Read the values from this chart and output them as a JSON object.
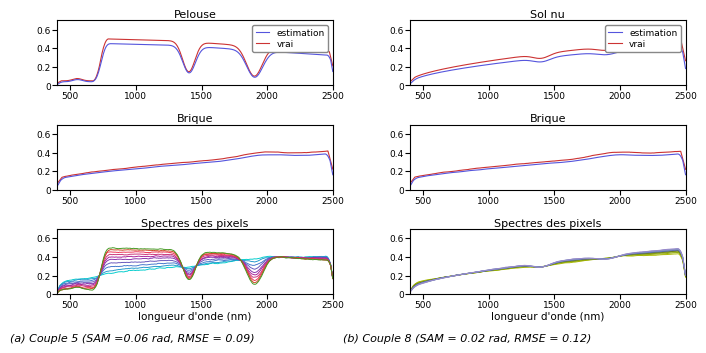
{
  "x_ticks": [
    500,
    1000,
    1500,
    2000,
    2500
  ],
  "y_ticks": [
    0,
    0.2,
    0.4,
    0.6
  ],
  "col_left_title_row1": "Pelouse",
  "col_right_title_row1": "Sol nu",
  "col_left_title_row2": "Brique",
  "col_right_title_row2": "Brique",
  "col_left_title_row3": "Spectres des pixels",
  "col_right_title_row3": "Spectres des pixels",
  "xlabel": "longueur d'onde (nm)",
  "legend_labels": [
    "estimation",
    "vrai"
  ],
  "blue_color": "#5555dd",
  "red_color": "#cc3333",
  "caption_left": "(a) Couple 5 (SAM =0.06 rad, RMSE = 0.09)",
  "caption_right": "(b) Couple 8 (SAM = 0.02 rad, RMSE = 0.12)",
  "caption_fontsize": 8,
  "title_fontsize": 8,
  "tick_fontsize": 6.5,
  "label_fontsize": 7.5,
  "line_width": 0.8,
  "pixel_colors_left": [
    "#00cccc",
    "#2299cc",
    "#4477cc",
    "#6655bb",
    "#8833aa",
    "#aa2299",
    "#cc3377",
    "#ee3355",
    "#cc4422",
    "#449922"
  ],
  "pixel_colors_right": [
    "#aabb00",
    "#99aa00",
    "#88aa11",
    "#778811",
    "#667722",
    "#5566aa",
    "#6677bb",
    "#7788cc",
    "#8899bb",
    "#9988cc"
  ],
  "background_color": "#ffffff"
}
